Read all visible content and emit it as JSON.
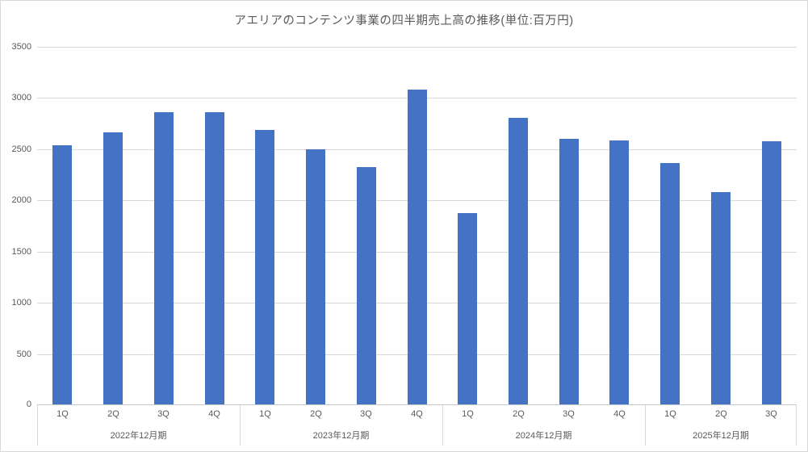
{
  "title": "アエリアのコンテンツ事業の四半期売上高の推移(単位:百万円)",
  "colors": {
    "bar": "#4472C4",
    "gridline": "#D9D9D9",
    "axis_line": "#C6C6C6",
    "text": "#595959",
    "border": "#D9D9D9",
    "background": "#FFFFFF"
  },
  "chart_data": {
    "type": "bar",
    "title": "アエリアのコンテンツ事業の四半期売上高の推移(単位:百万円)",
    "categories": [
      "1Q",
      "2Q",
      "3Q",
      "4Q",
      "1Q",
      "2Q",
      "3Q",
      "4Q",
      "1Q",
      "2Q",
      "3Q",
      "4Q",
      "1Q",
      "2Q",
      "3Q"
    ],
    "groups": [
      {
        "label": "2022年12月期",
        "span": 4
      },
      {
        "label": "2023年12月期",
        "span": 4
      },
      {
        "label": "2024年12月期",
        "span": 4
      },
      {
        "label": "2025年12月期",
        "span": 3
      }
    ],
    "values": [
      2540,
      2665,
      2860,
      2860,
      2690,
      2495,
      2325,
      3085,
      1875,
      2805,
      2605,
      2585,
      2365,
      2080,
      2575
    ],
    "series_name": "売上高",
    "xlabel": "",
    "ylabel": "",
    "ylim": [
      0,
      3500
    ],
    "ytick_step": 500,
    "yticks": [
      0,
      500,
      1000,
      1500,
      2000,
      2500,
      3000,
      3500
    ],
    "grid": true,
    "legend": "none"
  }
}
